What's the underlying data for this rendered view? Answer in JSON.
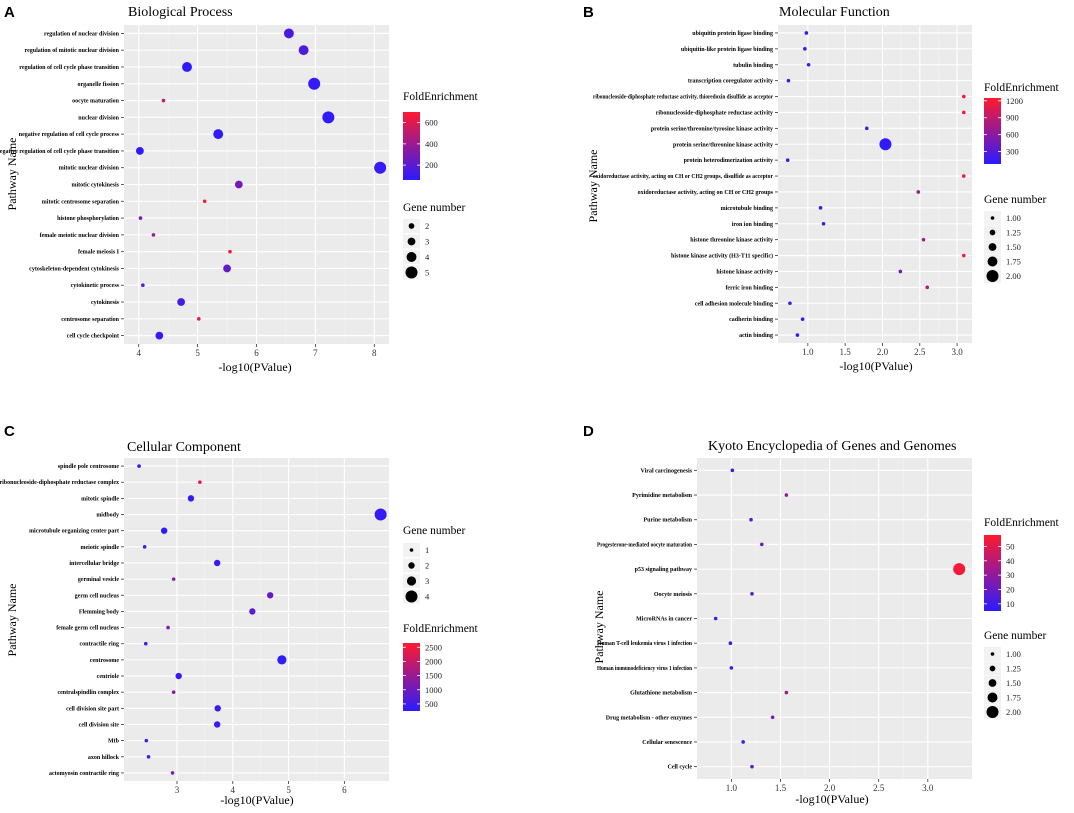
{
  "colors": {
    "panel_bg": "#ebebeb",
    "grid_major": "#ffffff",
    "grid_minor": "#f3f3f3",
    "low": "#2b1bff",
    "high": "#ff1a2e"
  },
  "legend_titles": {
    "fold": "FoldEnrichment",
    "gene": "Gene number"
  },
  "chart_data": [
    {
      "type": "scatter",
      "letter": "A",
      "title": "Biological Process",
      "xlabel": "-log10(PValue)",
      "ylabel": "Pathway Name",
      "xlim": [
        3.75,
        8.25
      ],
      "xticks": [
        4,
        5,
        6,
        7,
        8
      ],
      "color_scale": {
        "domain": [
          60,
          700
        ],
        "ticks": [
          200,
          400,
          600
        ]
      },
      "size_scale": {
        "domain": [
          1,
          5
        ],
        "ticks": [
          2,
          3,
          4,
          5
        ]
      },
      "points": [
        {
          "name": "regulation of nuclear division",
          "x": 6.55,
          "fold": 150,
          "gene": 4
        },
        {
          "name": "regulation of mitotic nuclear division",
          "x": 6.8,
          "fold": 165,
          "gene": 4
        },
        {
          "name": "regulation of cell cycle phase transition",
          "x": 4.82,
          "fold": 65,
          "gene": 4
        },
        {
          "name": "organelle fission",
          "x": 6.98,
          "fold": 80,
          "gene": 5
        },
        {
          "name": "oocyte maturation",
          "x": 4.42,
          "fold": 520,
          "gene": 1
        },
        {
          "name": "nuclear division",
          "x": 7.22,
          "fold": 75,
          "gene": 5
        },
        {
          "name": "negative regulation of cell cycle process",
          "x": 5.35,
          "fold": 80,
          "gene": 4
        },
        {
          "name": "negative regulation of cell cycle phase transition",
          "x": 4.02,
          "fold": 70,
          "gene": 3
        },
        {
          "name": "mitotic nuclear division",
          "x": 8.1,
          "fold": 90,
          "gene": 5
        },
        {
          "name": "mitotic cytokinesis",
          "x": 5.7,
          "fold": 280,
          "gene": 3
        },
        {
          "name": "mitotic centrosome separation",
          "x": 5.12,
          "fold": 680,
          "gene": 1
        },
        {
          "name": "histone phosphorylation",
          "x": 4.03,
          "fold": 310,
          "gene": 1
        },
        {
          "name": "female meiotic nuclear division",
          "x": 4.25,
          "fold": 380,
          "gene": 1
        },
        {
          "name": "female meiosis I",
          "x": 5.55,
          "fold": 660,
          "gene": 1
        },
        {
          "name": "cytoskeleton-dependent cytokinesis",
          "x": 5.5,
          "fold": 230,
          "gene": 3
        },
        {
          "name": "cytokinetic process",
          "x": 4.07,
          "fold": 180,
          "gene": 1
        },
        {
          "name": "cytokinesis",
          "x": 4.72,
          "fold": 140,
          "gene": 3
        },
        {
          "name": "centrosome separation",
          "x": 5.02,
          "fold": 620,
          "gene": 1
        },
        {
          "name": "cell cycle checkpoint",
          "x": 4.35,
          "fold": 75,
          "gene": 3
        }
      ]
    },
    {
      "type": "scatter",
      "letter": "B",
      "title": "Molecular Function",
      "xlabel": "-log10(PValue)",
      "ylabel": "Pathway Name",
      "xlim": [
        0.6,
        3.2
      ],
      "xticks": [
        1.0,
        1.5,
        2.0,
        2.5,
        3.0
      ],
      "xtick_labels": [
        "1.0",
        "1.5",
        "2.0",
        "2.5",
        "3.0"
      ],
      "color_scale": {
        "domain": [
          80,
          1250
        ],
        "ticks": [
          300,
          600,
          900,
          1200
        ]
      },
      "size_scale": {
        "domain": [
          1,
          2
        ],
        "ticks": [
          1.0,
          1.25,
          1.5,
          1.75,
          2.0
        ],
        "tick_labels": [
          "1.00",
          "1.25",
          "1.50",
          "1.75",
          "2.00"
        ]
      },
      "points": [
        {
          "name": "ubiquitin protein ligase binding",
          "x": 0.98,
          "fold": 110,
          "gene": 1
        },
        {
          "name": "ubiquitin-like protein ligase binding",
          "x": 0.96,
          "fold": 110,
          "gene": 1
        },
        {
          "name": "tubulin binding",
          "x": 1.01,
          "fold": 110,
          "gene": 1
        },
        {
          "name": "transcription coregulator activity",
          "x": 0.74,
          "fold": 90,
          "gene": 1
        },
        {
          "name": "ribonucleoside-diphosphate reductase activity, thioredoxin disulfide as acceptor",
          "x": 3.09,
          "fold": 1200,
          "gene": 1
        },
        {
          "name": "ribonucleoside-diphosphate reductase activity",
          "x": 3.09,
          "fold": 1200,
          "gene": 1
        },
        {
          "name": "protein serine/threonine/tyrosine kinase activity",
          "x": 1.79,
          "fold": 200,
          "gene": 1
        },
        {
          "name": "protein serine/threonine kinase activity",
          "x": 2.04,
          "fold": 100,
          "gene": 2
        },
        {
          "name": "protein heterodimerization activity",
          "x": 0.73,
          "fold": 100,
          "gene": 1
        },
        {
          "name": "oxidoreductase activity, acting on CH or CH2 groups, disulfide as acceptor",
          "x": 3.09,
          "fold": 1200,
          "gene": 1
        },
        {
          "name": "oxidoreductase activity, acting on CH or CH2 groups",
          "x": 2.48,
          "fold": 700,
          "gene": 1
        },
        {
          "name": "microtubule binding",
          "x": 1.17,
          "fold": 150,
          "gene": 1
        },
        {
          "name": "iron ion binding",
          "x": 1.21,
          "fold": 160,
          "gene": 1
        },
        {
          "name": "histone threonine kinase activity",
          "x": 2.55,
          "fold": 750,
          "gene": 1
        },
        {
          "name": "histone kinase activity (H3-T11 specific)",
          "x": 3.09,
          "fold": 1200,
          "gene": 1
        },
        {
          "name": "histone kinase activity",
          "x": 2.24,
          "fold": 450,
          "gene": 1
        },
        {
          "name": "ferric iron binding",
          "x": 2.6,
          "fold": 800,
          "gene": 1
        },
        {
          "name": "cell adhesion molecule binding",
          "x": 0.76,
          "fold": 100,
          "gene": 1
        },
        {
          "name": "cadherin binding",
          "x": 0.93,
          "fold": 100,
          "gene": 1
        },
        {
          "name": "actin binding",
          "x": 0.86,
          "fold": 90,
          "gene": 1
        }
      ]
    },
    {
      "type": "scatter",
      "letter": "C",
      "title": "Cellular Component",
      "xlabel": "-log10(PValue)",
      "ylabel": "Pathway Name",
      "xlim": [
        2.05,
        6.8
      ],
      "xticks": [
        3,
        4,
        5,
        6
      ],
      "color_scale": {
        "domain": [
          250,
          2650
        ],
        "ticks": [
          500,
          1000,
          1500,
          2000,
          2500
        ]
      },
      "size_scale": {
        "domain": [
          1,
          4
        ],
        "ticks": [
          1,
          2,
          3,
          4
        ]
      },
      "points": [
        {
          "name": "spindle pole centrosome",
          "x": 2.32,
          "fold": 300,
          "gene": 1
        },
        {
          "name": "ribonucleoside-diphosphate reductase complex",
          "x": 3.41,
          "fold": 2300,
          "gene": 1
        },
        {
          "name": "mitotic spindle",
          "x": 3.25,
          "fold": 300,
          "gene": 2
        },
        {
          "name": "midbody",
          "x": 6.65,
          "fold": 350,
          "gene": 4
        },
        {
          "name": "microtubule organizing center part",
          "x": 2.77,
          "fold": 280,
          "gene": 2
        },
        {
          "name": "meiotic spindle",
          "x": 2.42,
          "fold": 500,
          "gene": 1
        },
        {
          "name": "intercellular bridge",
          "x": 3.72,
          "fold": 400,
          "gene": 2
        },
        {
          "name": "germinal vesicle",
          "x": 2.94,
          "fold": 1300,
          "gene": 1
        },
        {
          "name": "germ cell nucleus",
          "x": 4.67,
          "fold": 900,
          "gene": 2
        },
        {
          "name": "Flemming body",
          "x": 4.35,
          "fold": 800,
          "gene": 2
        },
        {
          "name": "female germ cell nucleus",
          "x": 2.84,
          "fold": 1200,
          "gene": 1
        },
        {
          "name": "contractile ring",
          "x": 2.44,
          "fold": 500,
          "gene": 1
        },
        {
          "name": "centrosome",
          "x": 4.88,
          "fold": 300,
          "gene": 3
        },
        {
          "name": "centriole",
          "x": 3.03,
          "fold": 350,
          "gene": 2
        },
        {
          "name": "centralspindlin complex",
          "x": 2.94,
          "fold": 1300,
          "gene": 1
        },
        {
          "name": "cell division site part",
          "x": 3.73,
          "fold": 400,
          "gene": 2
        },
        {
          "name": "cell division site",
          "x": 3.72,
          "fold": 400,
          "gene": 2
        },
        {
          "name": "Mtb",
          "x": 2.45,
          "fold": 500,
          "gene": 1
        },
        {
          "name": "axon hillock",
          "x": 2.49,
          "fold": 550,
          "gene": 1
        },
        {
          "name": "actomyosin contractile ring",
          "x": 2.92,
          "fold": 1200,
          "gene": 1
        }
      ]
    },
    {
      "type": "scatter",
      "letter": "D",
      "title": "Kyoto Encyclopedia of Genes and Genomes",
      "xlabel": "-log10(PValue)",
      "ylabel": "Pathway Name",
      "xlim": [
        0.65,
        3.45
      ],
      "xticks": [
        1.0,
        1.5,
        2.0,
        2.5,
        3.0
      ],
      "xtick_labels": [
        "1.0",
        "1.5",
        "2.0",
        "2.5",
        "3.0"
      ],
      "color_scale": {
        "domain": [
          5,
          58
        ],
        "ticks": [
          10,
          20,
          30,
          40,
          50
        ]
      },
      "size_scale": {
        "domain": [
          1,
          2
        ],
        "ticks": [
          1.0,
          1.25,
          1.5,
          1.75,
          2.0
        ],
        "tick_labels": [
          "1.00",
          "1.25",
          "1.50",
          "1.75",
          "2.00"
        ]
      },
      "points": [
        {
          "name": "Viral carcinogenesis",
          "x": 1.01,
          "fold": 8,
          "gene": 1
        },
        {
          "name": "Pyrimidine metabolism",
          "x": 1.56,
          "fold": 32,
          "gene": 1
        },
        {
          "name": "Purine metabolism",
          "x": 1.2,
          "fold": 15,
          "gene": 1
        },
        {
          "name": "Progesterone-mediated oocyte maturation",
          "x": 1.31,
          "fold": 20,
          "gene": 1
        },
        {
          "name": "p53 signaling pathway",
          "x": 3.32,
          "fold": 55,
          "gene": 2
        },
        {
          "name": "Oocyte meiosis",
          "x": 1.21,
          "fold": 16,
          "gene": 1
        },
        {
          "name": "MicroRNAs in cancer",
          "x": 0.84,
          "fold": 6,
          "gene": 1
        },
        {
          "name": "Human T-cell leukemia virus 1 infection",
          "x": 0.99,
          "fold": 8,
          "gene": 1
        },
        {
          "name": "Human immunodeficiency virus 1 infection",
          "x": 1.0,
          "fold": 8,
          "gene": 1
        },
        {
          "name": "Glutathione metabolism",
          "x": 1.56,
          "fold": 33,
          "gene": 1
        },
        {
          "name": "Drug metabolism - other enzymes",
          "x": 1.42,
          "fold": 25,
          "gene": 1
        },
        {
          "name": "Cellular senescence",
          "x": 1.12,
          "fold": 11,
          "gene": 1
        },
        {
          "name": "Cell cycle",
          "x": 1.21,
          "fold": 16,
          "gene": 1
        }
      ]
    }
  ]
}
